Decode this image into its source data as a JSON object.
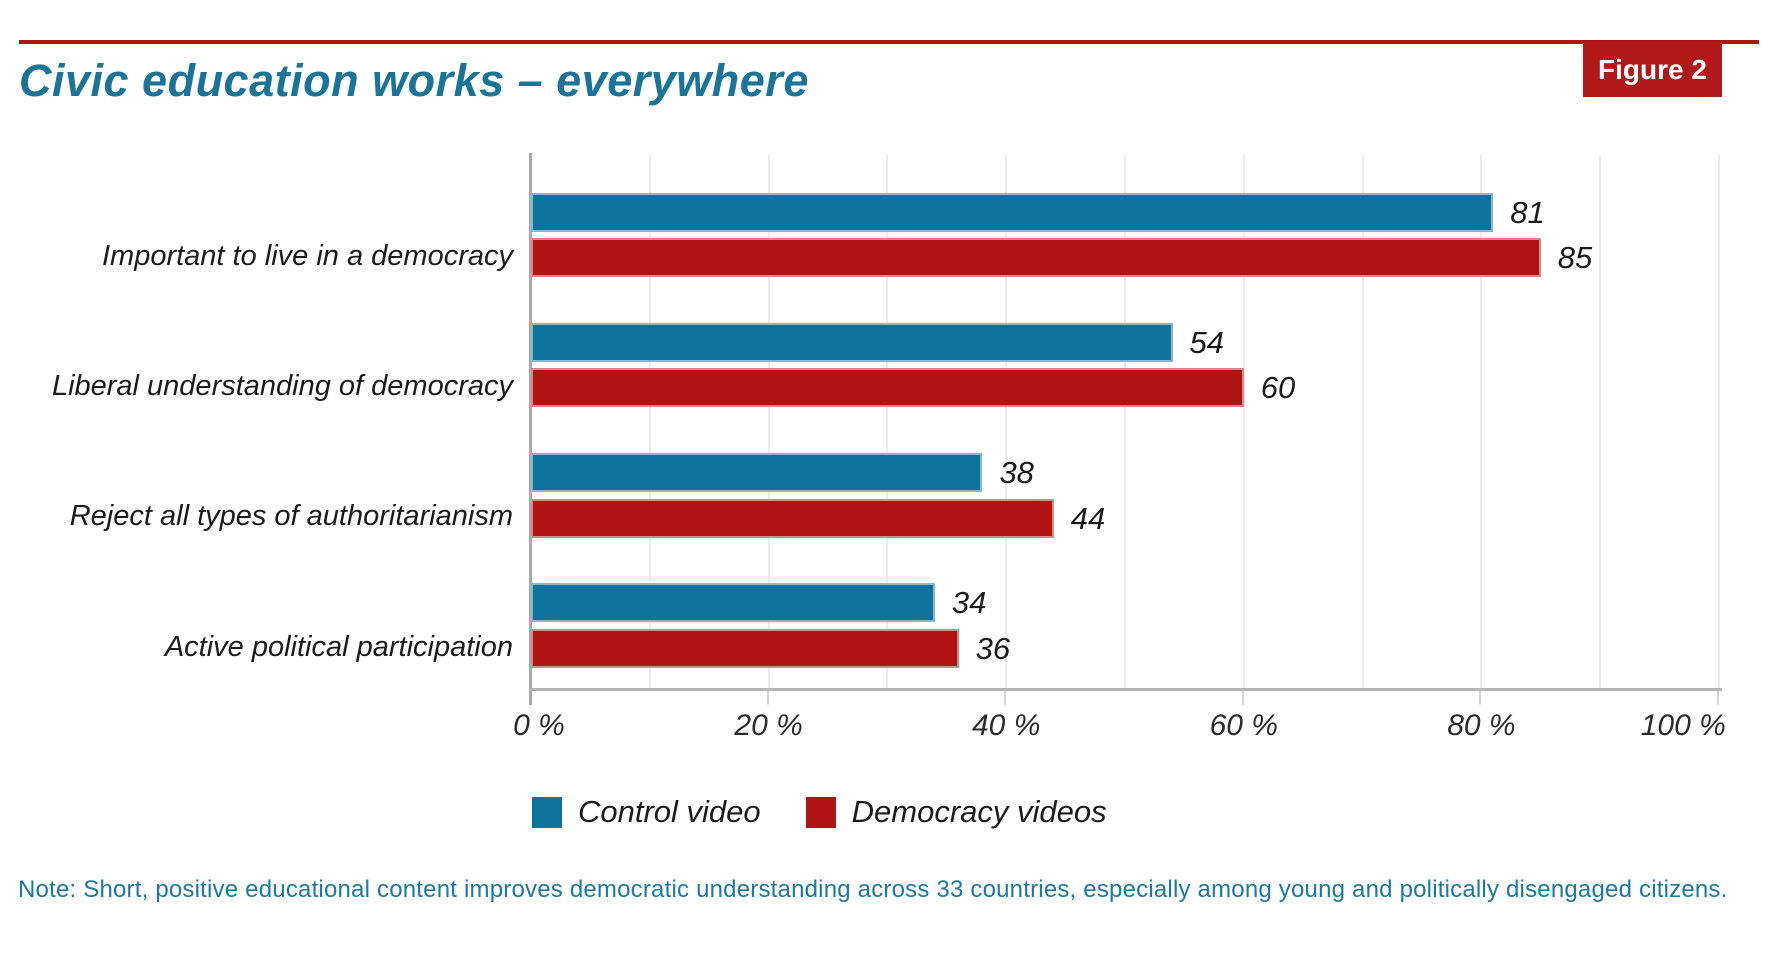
{
  "figure_badge": "Figure 2",
  "title": "Civic education works – everywhere",
  "note": "Note: Short, positive educational content improves democratic understanding across 33 countries, especially among young and politically disengaged citizens.",
  "colors": {
    "accent_red": "#b11414",
    "badge_red": "#b11818",
    "bar_blue": "#0b739c",
    "bar_red": "#b11313",
    "title_teal": "#1a7499",
    "note_teal": "#1a7aa3",
    "gridline": "#ededed",
    "axis_gray": "#a9a9a9"
  },
  "chart_data": {
    "type": "bar",
    "orientation": "horizontal",
    "title": "Civic education works – everywhere",
    "categories": [
      "Important to live in a democracy",
      "Liberal understanding of democracy",
      "Reject all types of authoritarianism",
      "Active political participation"
    ],
    "series": [
      {
        "name": "Control video",
        "color_key": "bar_blue",
        "values": [
          81,
          54,
          38,
          34
        ]
      },
      {
        "name": "Democracy videos",
        "color_key": "bar_red",
        "values": [
          85,
          60,
          44,
          36
        ]
      }
    ],
    "xlim": [
      0,
      100
    ],
    "x_tick_labels": [
      "0 %",
      "20 %",
      "40 %",
      "60 %",
      "80 %",
      "100 %"
    ],
    "x_tick_values": [
      0,
      20,
      40,
      60,
      80,
      100
    ],
    "grid": "vertical gridlines every 10%",
    "value_labels": true,
    "legend_position": "bottom"
  }
}
